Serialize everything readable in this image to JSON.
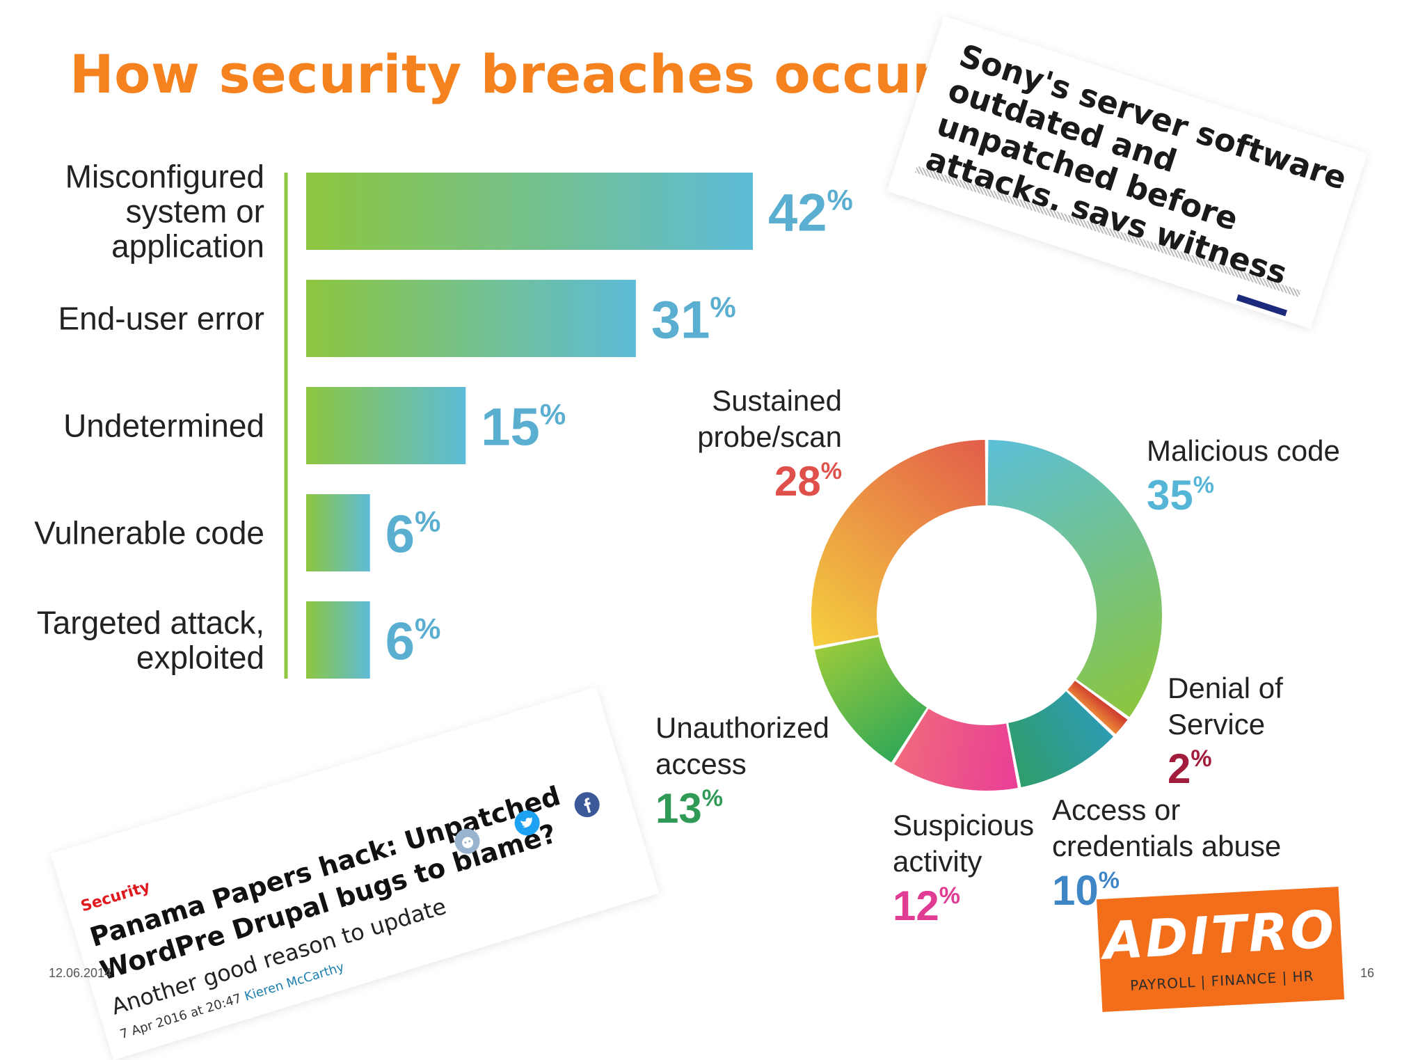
{
  "slide": {
    "title": "How security breaches occur?",
    "date": "12.06.2014",
    "page": "16"
  },
  "chart_data": [
    {
      "type": "bar",
      "orientation": "horizontal",
      "categories": [
        [
          "Misconfigured",
          "system or",
          "application"
        ],
        [
          "End-user error"
        ],
        [
          "Undetermined"
        ],
        [
          "Vulnerable code"
        ],
        [
          "Targeted attack,",
          "exploited"
        ]
      ],
      "values": [
        42,
        31,
        15,
        6,
        6
      ],
      "value_labels": [
        "42",
        "31",
        "15",
        "6",
        "6"
      ],
      "unit": "%",
      "xlim": [
        0,
        42
      ],
      "grid": false,
      "colors": {
        "gradient_start": "#8dc63f",
        "gradient_end": "#5dbcd8",
        "axis": "#8dc63f",
        "value": "#5aaed0"
      }
    },
    {
      "type": "pie",
      "style": "donut",
      "slices": [
        {
          "label": [
            "Malicious code"
          ],
          "value": 35,
          "color_start": "#5bbfd9",
          "color_end": "#8cc63e",
          "value_color": "#55b5d6"
        },
        {
          "label": [
            "Denial of",
            "Service"
          ],
          "value": 2,
          "color_start": "#c9302c",
          "color_end": "#f0923a",
          "value_color": "#a11d3b"
        },
        {
          "label": [
            "Access or",
            "credentials abuse"
          ],
          "value": 10,
          "color_start": "#2e9bb3",
          "color_end": "#2f9d68",
          "value_color": "#3f86c6"
        },
        {
          "label": [
            "Suspicious",
            "activity"
          ],
          "value": 12,
          "color_start": "#e93d97",
          "color_end": "#f06a7c",
          "value_color": "#e13c93"
        },
        {
          "label": [
            "Unauthorized",
            "access"
          ],
          "value": 13,
          "color_start": "#30a857",
          "color_end": "#9ccb3b",
          "value_color": "#2f9a55"
        },
        {
          "label": [
            "Sustained",
            "probe/scan"
          ],
          "value": 28,
          "color_start": "#f5d03e",
          "color_end": "#e25c4a",
          "value_color": "#e0504a"
        }
      ],
      "unit": "%",
      "legend": "none"
    }
  ],
  "clippings": {
    "sony": {
      "headline": "Sony's server software outdated and unpatched before attacks, says witness"
    },
    "panama": {
      "section": "Security",
      "headline": "Panama Papers hack: Unpatched WordPre Drupal bugs to blame?",
      "subhead": "Another good reason to update",
      "date": "7 Apr 2016 at 20:47",
      "author": "Kieren McCarthy",
      "icons": [
        "reddit-icon",
        "twitter-icon",
        "facebook-icon"
      ]
    }
  },
  "logo": {
    "brand": "ADITRO",
    "tagline": "PAYROLL | FINANCE | HR"
  },
  "colors": {
    "title": "#f5821f",
    "logo_background": "#f26e1b"
  }
}
